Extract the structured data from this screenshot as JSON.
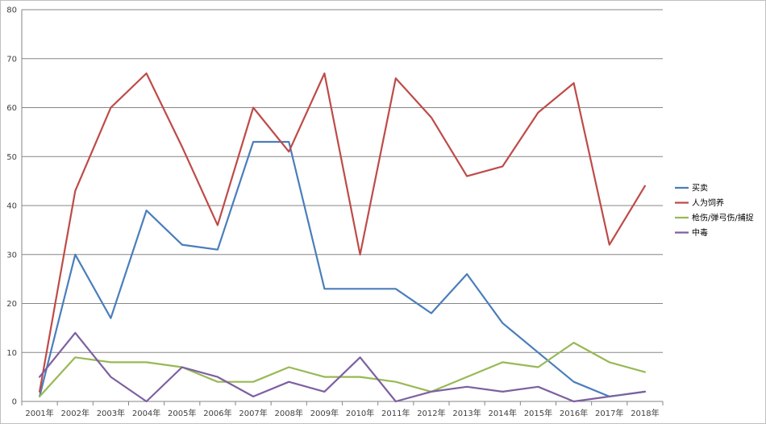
{
  "chart_data": {
    "type": "line",
    "title": "",
    "xlabel": "",
    "ylabel": "",
    "ylim": [
      0,
      80
    ],
    "yticks": [
      0,
      10,
      20,
      30,
      40,
      50,
      60,
      70,
      80
    ],
    "grid": true,
    "legend_position": "right",
    "categories": [
      "2001年",
      "2002年",
      "2003年",
      "2004年",
      "2005年",
      "2006年",
      "2007年",
      "2008年",
      "2009年",
      "2010年",
      "2011年",
      "2012年",
      "2013年",
      "2014年",
      "2015年",
      "2016年",
      "2017年",
      "2018年"
    ],
    "series": [
      {
        "name": "买卖",
        "color": "#4a7ebb",
        "values": [
          1,
          30,
          17,
          39,
          32,
          31,
          53,
          53,
          23,
          23,
          23,
          18,
          26,
          16,
          10,
          4,
          1,
          2
        ]
      },
      {
        "name": "人为饲养",
        "color": "#be4b48",
        "values": [
          2,
          43,
          60,
          67,
          52,
          36,
          60,
          51,
          67,
          30,
          66,
          58,
          46,
          48,
          59,
          65,
          32,
          44
        ]
      },
      {
        "name": "枪伤/弹弓伤/捕捉",
        "color": "#98b954",
        "values": [
          1,
          9,
          8,
          8,
          7,
          4,
          4,
          7,
          5,
          5,
          4,
          2,
          5,
          8,
          7,
          12,
          8,
          6
        ]
      },
      {
        "name": "中毒",
        "color": "#7d60a0",
        "values": [
          5,
          14,
          5,
          0,
          7,
          5,
          1,
          4,
          2,
          9,
          0,
          2,
          3,
          2,
          3,
          0,
          1,
          2
        ]
      }
    ]
  }
}
